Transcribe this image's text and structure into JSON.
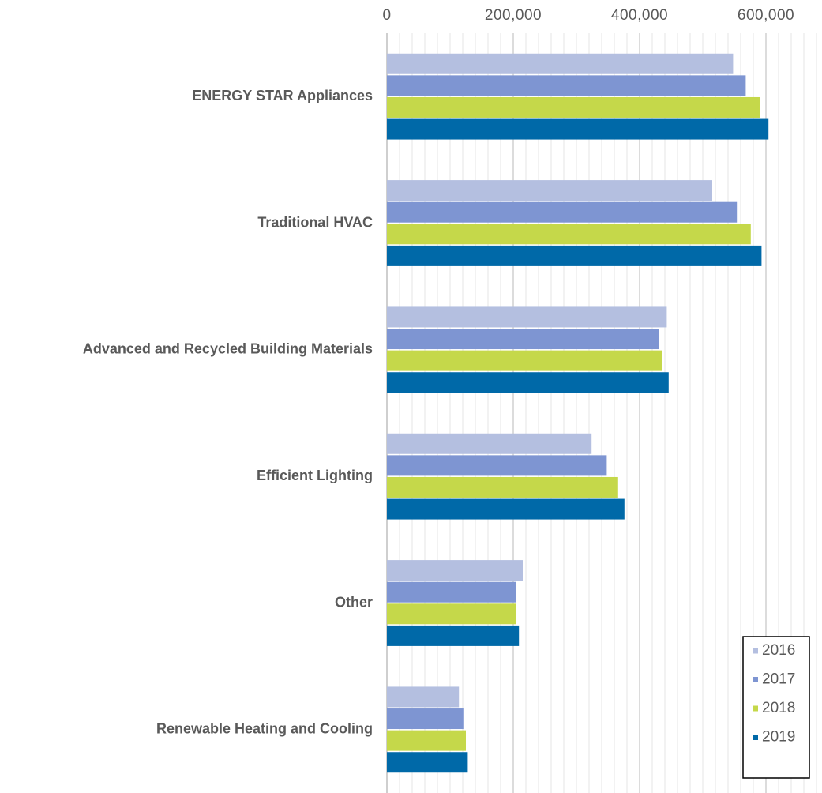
{
  "chart_data": {
    "type": "hbar",
    "categories": [
      "ENERGY STAR Appliances",
      "Traditional HVAC",
      "Advanced and Recycled Building Materials",
      "Efficient Lighting",
      "Other",
      "Renewable Heating and Cooling"
    ],
    "series": [
      {
        "name": "2016",
        "color": "#b4bfe0",
        "values": [
          548000,
          515000,
          443000,
          324000,
          215000,
          114000
        ]
      },
      {
        "name": "2017",
        "color": "#7e95d2",
        "values": [
          568000,
          554000,
          430000,
          348000,
          204000,
          121000
        ]
      },
      {
        "name": "2018",
        "color": "#c5d84a",
        "values": [
          590000,
          576000,
          435000,
          366000,
          204000,
          125000
        ]
      },
      {
        "name": "2019",
        "color": "#0069a8",
        "values": [
          604000,
          593000,
          446000,
          376000,
          209000,
          128000
        ]
      }
    ],
    "xlim": [
      0,
      680000
    ],
    "xticks": [
      0,
      {
        "value": 200000,
        "label": "200,000"
      },
      {
        "value": 400000,
        "label": "400,000"
      },
      {
        "value": 600000,
        "label": "600,000"
      }
    ],
    "minor_xticks": [
      20000,
      40000,
      60000,
      80000,
      100000,
      120000,
      140000,
      160000,
      180000,
      220000,
      240000,
      260000,
      280000,
      300000,
      320000,
      340000,
      360000,
      380000,
      420000,
      440000,
      460000,
      480000,
      500000,
      520000,
      540000,
      560000,
      580000,
      620000,
      640000,
      660000,
      680000
    ],
    "grid": true,
    "legend": "bottom-right"
  }
}
